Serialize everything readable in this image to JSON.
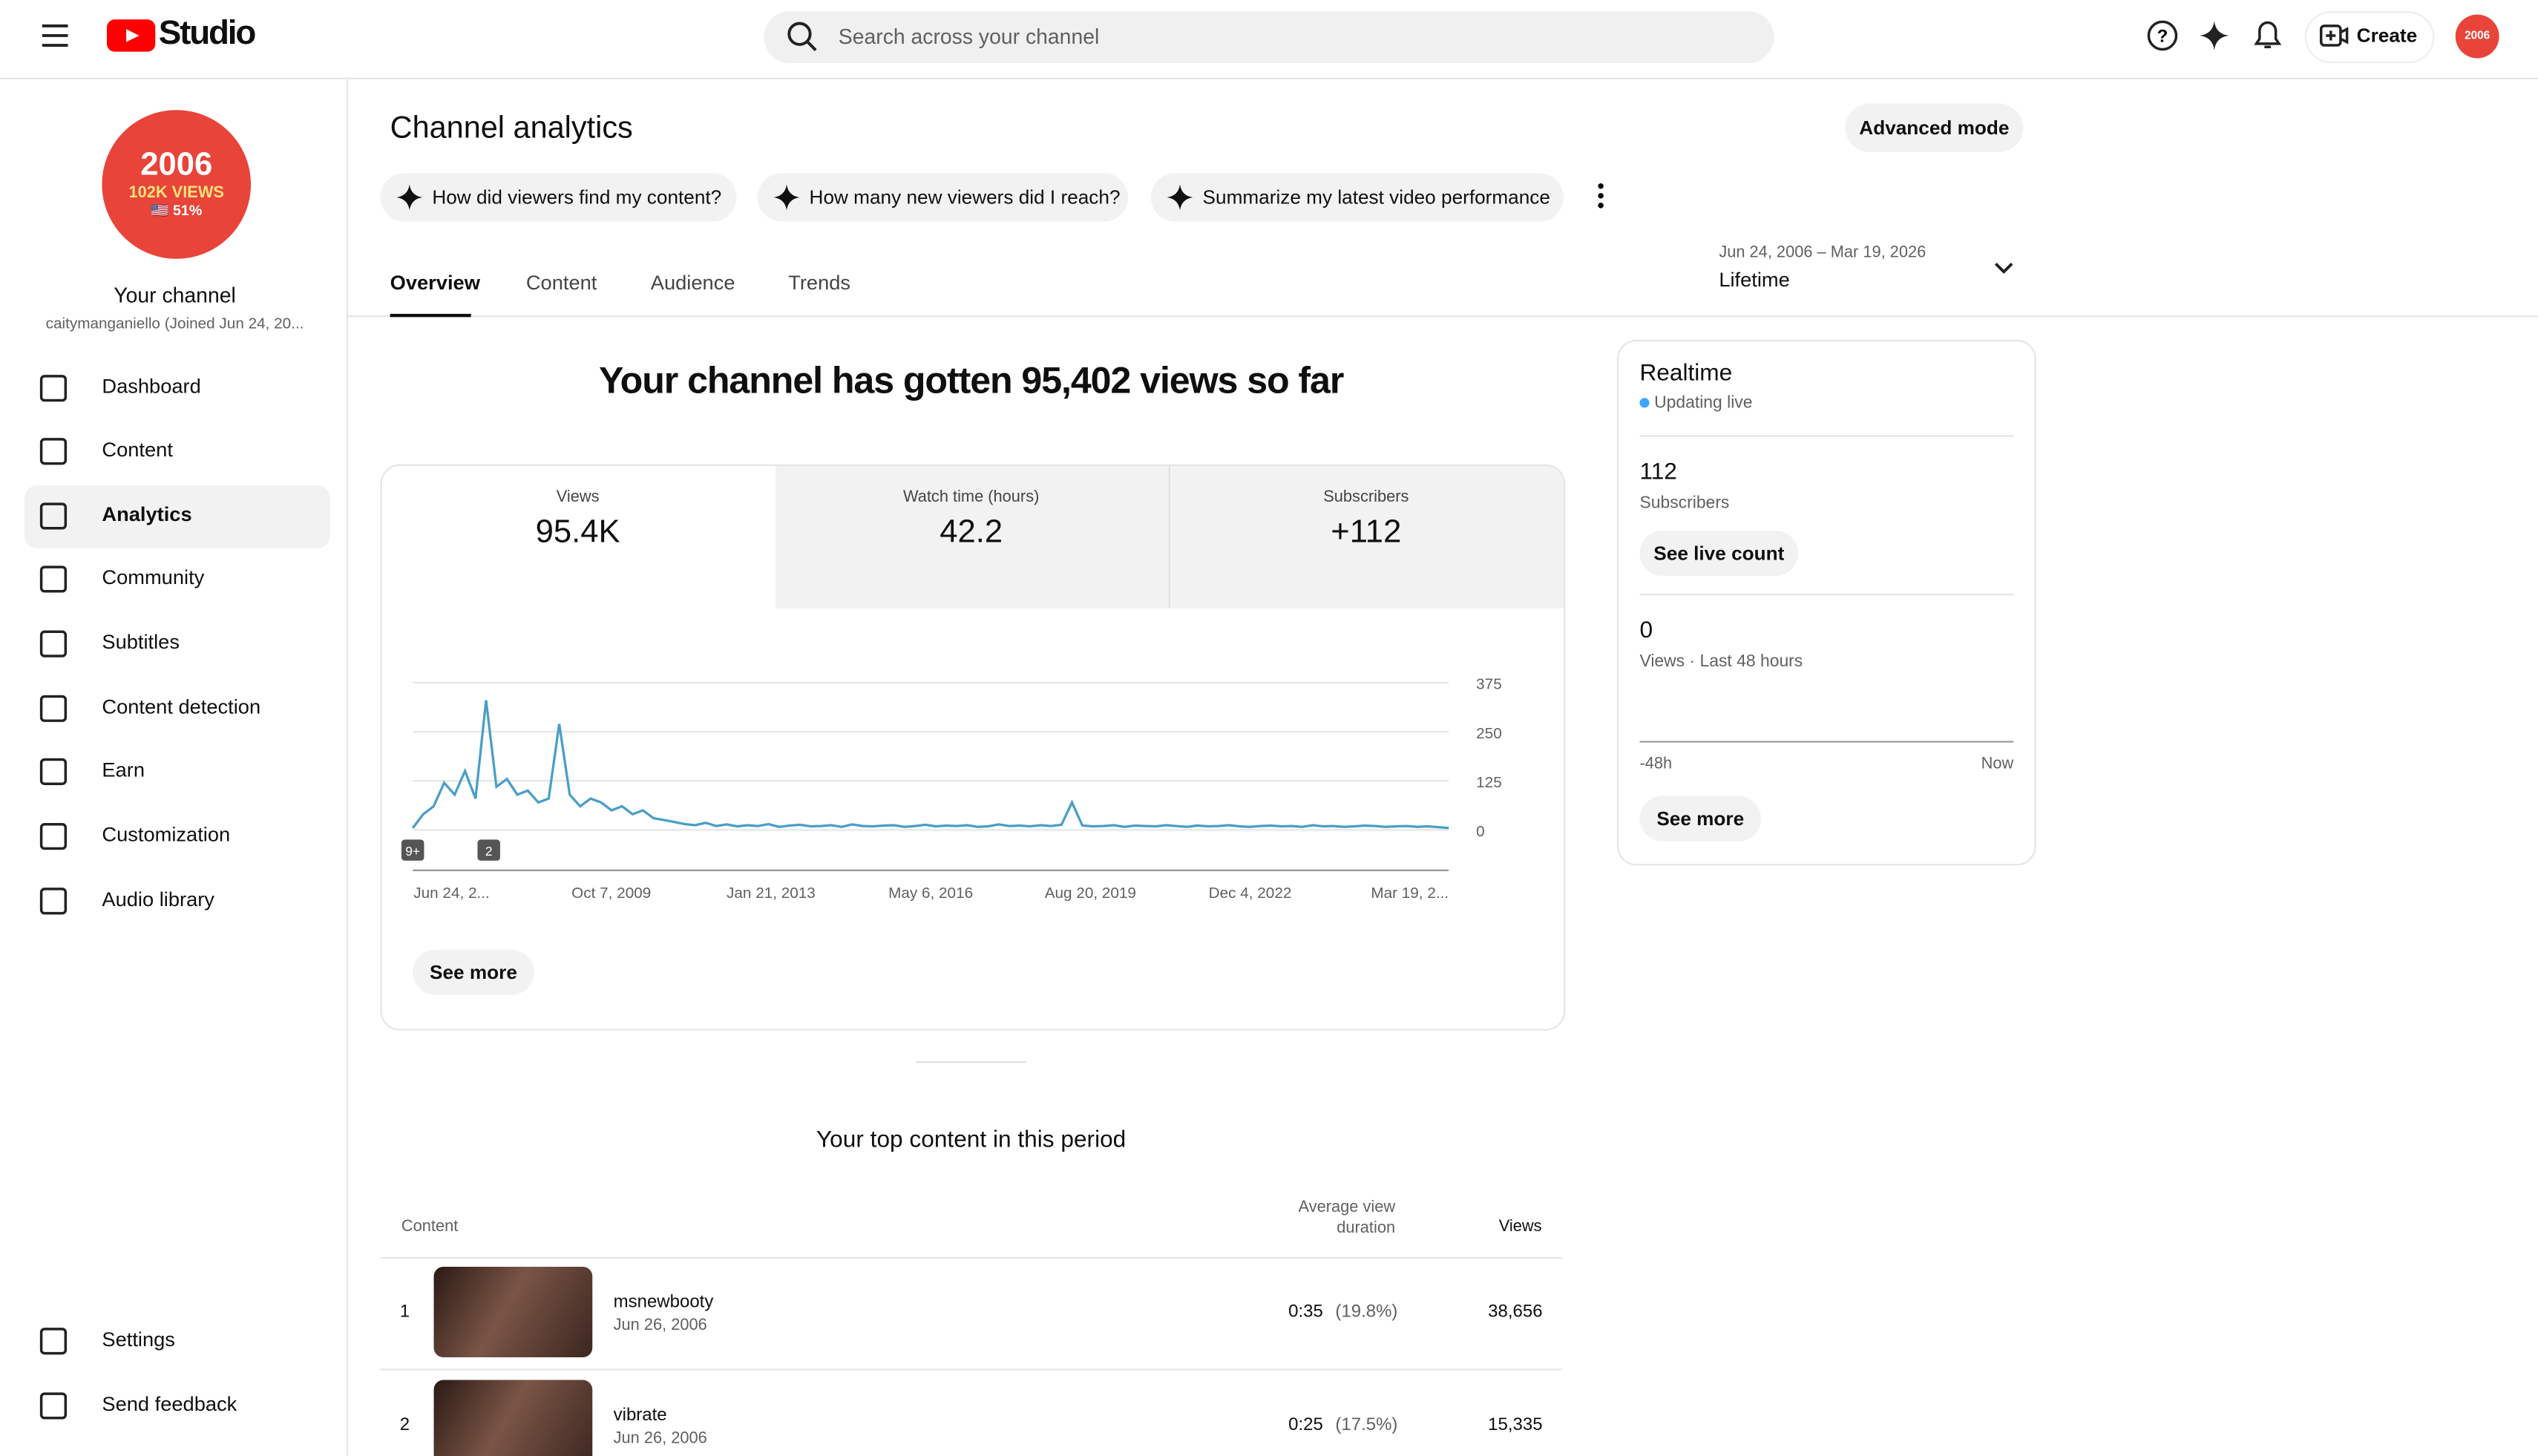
{
  "header": {
    "logo": "Studio",
    "search_placeholder": "Search across your channel",
    "create": "Create"
  },
  "sidebar": {
    "avatar": {
      "line1": "2006",
      "line2": "102K VIEWS",
      "line3": "🇺🇸 51%"
    },
    "channel_name": "Your channel",
    "channel_handle": "caitymanganiello (Joined Jun 24, 20...",
    "nav": [
      "Dashboard",
      "Content",
      "Analytics",
      "Community",
      "Subtitles",
      "Content detection",
      "Earn",
      "Customization",
      "Audio library"
    ],
    "bottom_nav": [
      "Settings",
      "Send feedback"
    ]
  },
  "main": {
    "title": "Channel analytics",
    "advanced": "Advanced mode",
    "prompts": [
      "How did viewers find my content?",
      "How many new viewers did I reach?",
      "Summarize my latest video performance"
    ],
    "tabs": [
      "Overview",
      "Content",
      "Audience",
      "Trends"
    ],
    "date_range": {
      "range": "Jun 24, 2006 – Mar 19, 2026",
      "label": "Lifetime"
    },
    "headline": "Your channel has gotten 95,402 views so far",
    "metrics": [
      {
        "label": "Views",
        "value": "95.4K"
      },
      {
        "label": "Watch time (hours)",
        "value": "42.2"
      },
      {
        "label": "Subscribers",
        "value": "+112"
      }
    ],
    "views_chart": {
      "type": "line",
      "color": "#4a9ec7",
      "ylim": [
        0,
        375
      ],
      "yticks": [
        0,
        125,
        250,
        375
      ],
      "x_labels": [
        "Jun 24, 2...",
        "Oct 7, 2009",
        "Jan 21, 2013",
        "May 6, 2016",
        "Aug 20, 2019",
        "Dec 4, 2022",
        "Mar 19, 2..."
      ],
      "markers": [
        "9+",
        "2"
      ],
      "values": [
        5,
        40,
        60,
        120,
        90,
        150,
        80,
        330,
        110,
        130,
        90,
        100,
        70,
        80,
        270,
        90,
        60,
        80,
        70,
        50,
        60,
        40,
        50,
        30,
        25,
        20,
        15,
        12,
        18,
        10,
        14,
        9,
        12,
        10,
        15,
        8,
        11,
        13,
        9,
        10,
        12,
        8,
        14,
        10,
        9,
        11,
        12,
        8,
        10,
        13,
        9,
        11,
        10,
        12,
        8,
        9,
        14,
        10,
        11,
        9,
        12,
        10,
        13,
        70,
        11,
        9,
        10,
        12,
        8,
        11,
        10,
        9,
        12,
        10,
        8,
        11,
        9,
        10,
        12,
        9,
        8,
        10,
        11,
        9,
        10,
        8,
        12,
        9,
        10,
        8,
        9,
        11,
        10,
        8,
        9,
        10,
        8,
        9,
        7,
        5
      ]
    },
    "see_more": "See more",
    "top_content": {
      "title": "Your top content in this period",
      "columns": [
        "Content",
        "Average view duration",
        "Views"
      ],
      "rows": [
        {
          "rank": "1",
          "title": "msnewbooty",
          "date": "Jun 26, 2006",
          "duration": "0:35",
          "percent": "(19.8%)",
          "views": "38,656"
        },
        {
          "rank": "2",
          "title": "vibrate",
          "date": "Jun 26, 2006",
          "duration": "0:25",
          "percent": "(17.5%)",
          "views": "15,335"
        }
      ]
    }
  },
  "realtime": {
    "title": "Realtime",
    "status": "Updating live",
    "subscribers": {
      "value": "112",
      "label": "Subscribers",
      "button": "See live count"
    },
    "views": {
      "value": "0",
      "label": "Views · Last 48 hours",
      "start": "-48h",
      "end": "Now"
    },
    "button": "See more"
  }
}
